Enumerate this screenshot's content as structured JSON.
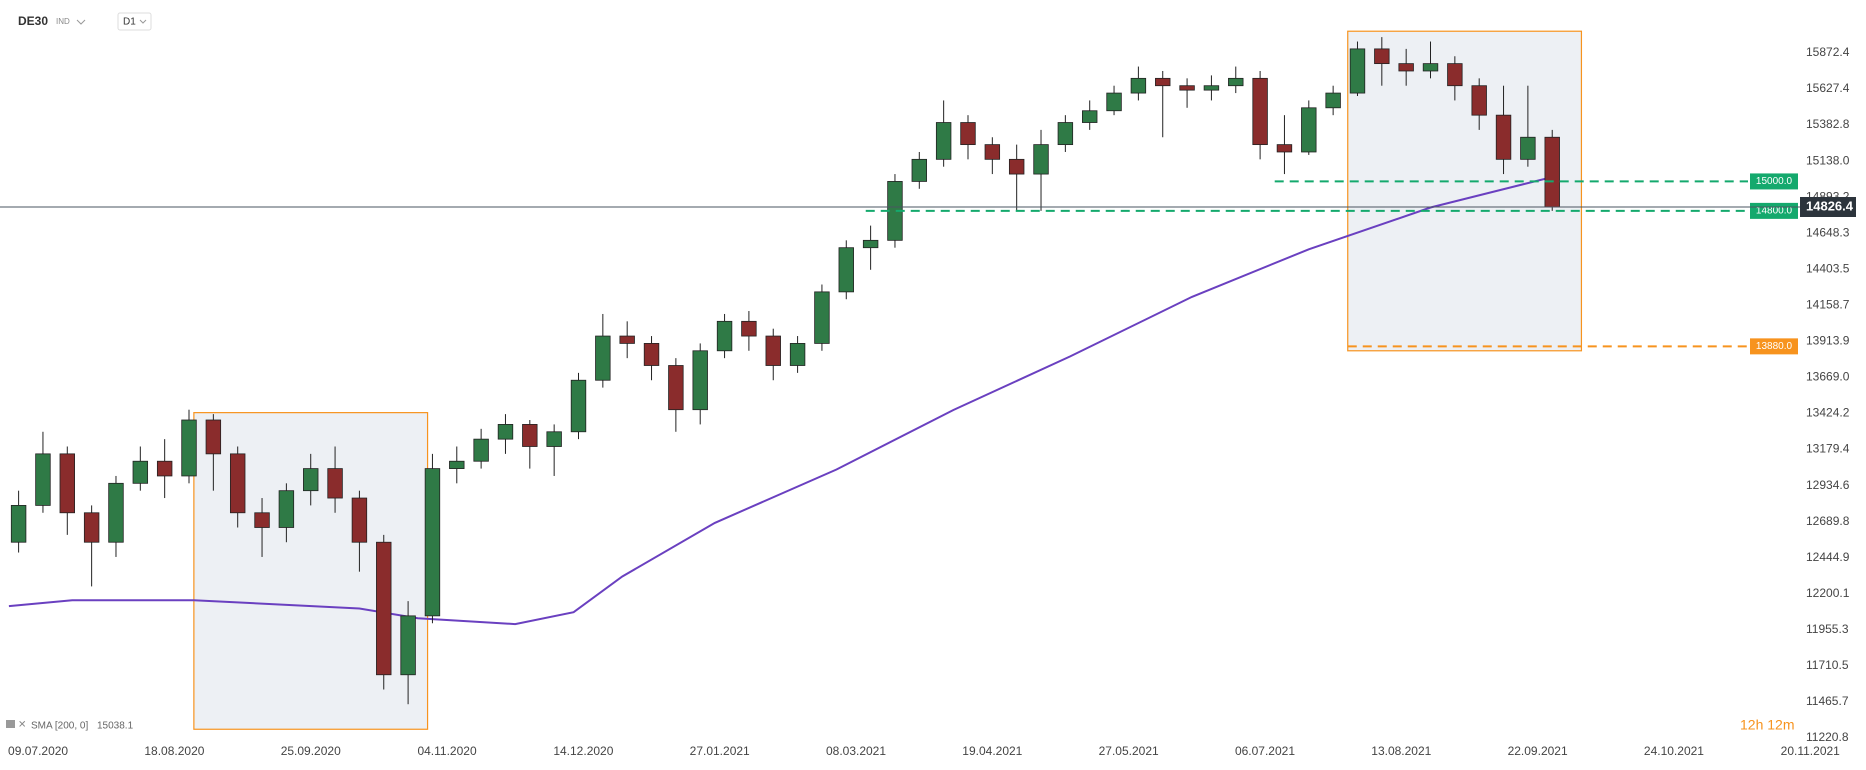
{
  "header": {
    "symbol": "DE30",
    "market": "IND",
    "interval": "D1"
  },
  "chart_data": {
    "type": "candlestick",
    "up_color": "#2f7a46",
    "down_color": "#8a2c2c",
    "xlim": [
      -1,
      372
    ],
    "ylim": [
      11207,
      16232
    ],
    "xticks": [
      {
        "value": 6,
        "label": "09.07.2020"
      },
      {
        "value": 34,
        "label": "18.08.2020"
      },
      {
        "value": 62,
        "label": "25.09.2020"
      },
      {
        "value": 90,
        "label": "04.11.2020"
      },
      {
        "value": 118,
        "label": "14.12.2020"
      },
      {
        "value": 146,
        "label": "27.01.2021"
      },
      {
        "value": 174,
        "label": "08.03.2021"
      },
      {
        "value": 202,
        "label": "19.04.2021"
      },
      {
        "value": 230,
        "label": "27.05.2021"
      },
      {
        "value": 258,
        "label": "06.07.2021"
      },
      {
        "value": 286,
        "label": "13.08.2021"
      },
      {
        "value": 314,
        "label": "22.09.2021"
      },
      {
        "value": 342,
        "label": "24.10.2021"
      },
      {
        "value": 370,
        "label": "20.11.2021"
      }
    ],
    "yticks": [
      15872.4,
      15627.4,
      15382.8,
      {
        "value": 15138,
        "label": "15138.0"
      },
      14893.2,
      14648.3,
      14403.5,
      14158.7,
      13913.9,
      {
        "value": 13669,
        "label": "13669.0"
      },
      13424.2,
      13179.4,
      12934.6,
      12689.8,
      12444.9,
      12200.1,
      11955.3,
      11710.5,
      11465.7,
      11220.8
    ],
    "x": [
      2,
      7,
      12,
      17,
      22,
      27,
      32,
      37,
      42,
      47,
      52,
      57,
      62,
      67,
      72,
      77,
      82,
      87,
      92,
      97,
      102,
      107,
      112,
      117,
      122,
      127,
      132,
      137,
      142,
      147,
      152,
      157,
      162,
      167,
      172,
      177,
      182,
      187,
      192,
      197,
      202,
      207,
      212,
      217,
      222,
      227,
      232,
      237,
      242,
      247,
      252,
      257,
      262,
      267,
      272,
      277,
      282,
      287,
      292,
      297,
      302,
      307,
      312,
      317
    ],
    "open": [
      12550,
      12800,
      13150,
      12750,
      12550,
      12950,
      13100,
      13000,
      13380,
      13150,
      12750,
      12650,
      12900,
      13050,
      12850,
      12550,
      11650,
      12050,
      13050,
      13100,
      13250,
      13350,
      13200,
      13300,
      13650,
      13950,
      13900,
      13750,
      13450,
      13850,
      14050,
      13950,
      13750,
      13900,
      14250,
      14550,
      14600,
      15000,
      15150,
      15400,
      15250,
      15150,
      15050,
      15250,
      15400,
      15480,
      15600,
      15700,
      15650,
      15620,
      15650,
      15700,
      15250,
      15200,
      15500,
      15600,
      15900,
      15800,
      15750,
      15800,
      15650,
      15450,
      15150,
      15300
    ],
    "high": [
      12900,
      13300,
      13200,
      12800,
      13000,
      13200,
      13250,
      13450,
      13420,
      13200,
      12850,
      12950,
      13150,
      13200,
      12900,
      12600,
      12150,
      13150,
      13200,
      13320,
      13420,
      13380,
      13350,
      13700,
      14100,
      14050,
      13950,
      13800,
      13900,
      14100,
      14120,
      14000,
      13950,
      14300,
      14600,
      14700,
      15050,
      15200,
      15550,
      15450,
      15300,
      15250,
      15350,
      15450,
      15550,
      15650,
      15780,
      15750,
      15700,
      15720,
      15780,
      15750,
      15450,
      15550,
      15650,
      15950,
      15980,
      15900,
      15950,
      15850,
      15700,
      15650,
      15650,
      15350
    ],
    "low": [
      12480,
      12750,
      12600,
      12250,
      12450,
      12900,
      12850,
      12950,
      12900,
      12650,
      12450,
      12550,
      12800,
      12750,
      12350,
      11550,
      11450,
      12000,
      12950,
      13050,
      13150,
      13050,
      13000,
      13250,
      13600,
      13800,
      13650,
      13300,
      13350,
      13800,
      13850,
      13650,
      13700,
      13850,
      14200,
      14400,
      14550,
      14950,
      15100,
      15150,
      15050,
      14800,
      14800,
      15200,
      15350,
      15450,
      15550,
      15300,
      15500,
      15550,
      15600,
      15150,
      15050,
      15180,
      15450,
      15580,
      15650,
      15650,
      15700,
      15550,
      15350,
      15050,
      15100,
      14800
    ],
    "close": [
      12800,
      13150,
      12750,
      12550,
      12950,
      13100,
      13000,
      13380,
      13150,
      12750,
      12650,
      12900,
      13050,
      12850,
      12550,
      11650,
      12050,
      13050,
      13100,
      13250,
      13350,
      13200,
      13300,
      13650,
      13950,
      13900,
      13750,
      13450,
      13850,
      14050,
      13950,
      13750,
      13900,
      14250,
      14550,
      14600,
      15000,
      15150,
      15400,
      15250,
      15150,
      15050,
      15250,
      15400,
      15480,
      15600,
      15700,
      15650,
      15620,
      15650,
      15700,
      15250,
      15200,
      15500,
      15600,
      15900,
      15800,
      15750,
      15800,
      15650,
      15450,
      15150,
      15300,
      14826.4
    ],
    "sma": {
      "label": "SMA [200, 0]",
      "color": "#6a40c0",
      "x": [
        0,
        13,
        38,
        72,
        84,
        104,
        116,
        126,
        145,
        170,
        194,
        218,
        243,
        267,
        292,
        318
      ],
      "values": [
        12116,
        12156,
        12156,
        12100,
        12034,
        11994,
        12075,
        12317,
        12681,
        13044,
        13448,
        13812,
        14216,
        14539,
        14823,
        15038.1
      ]
    },
    "levels": [
      {
        "value": 15000,
        "label": "15000.0",
        "x0": 260,
        "color": "#14a96d"
      },
      {
        "value": 14800,
        "label": "14800.0",
        "x0": 176,
        "color": "#14a96d"
      },
      {
        "value": 13880,
        "label": "13880.0",
        "x0": 275,
        "color": "#f7931e"
      }
    ],
    "zones": [
      {
        "x": [
          38,
          86
        ],
        "y": [
          11280,
          13430
        ],
        "color": "#f7931e"
      },
      {
        "x": [
          275,
          323
        ],
        "y": [
          13850,
          16020
        ],
        "color": "#f7931e"
      }
    ],
    "countdown": "12h 12m"
  }
}
